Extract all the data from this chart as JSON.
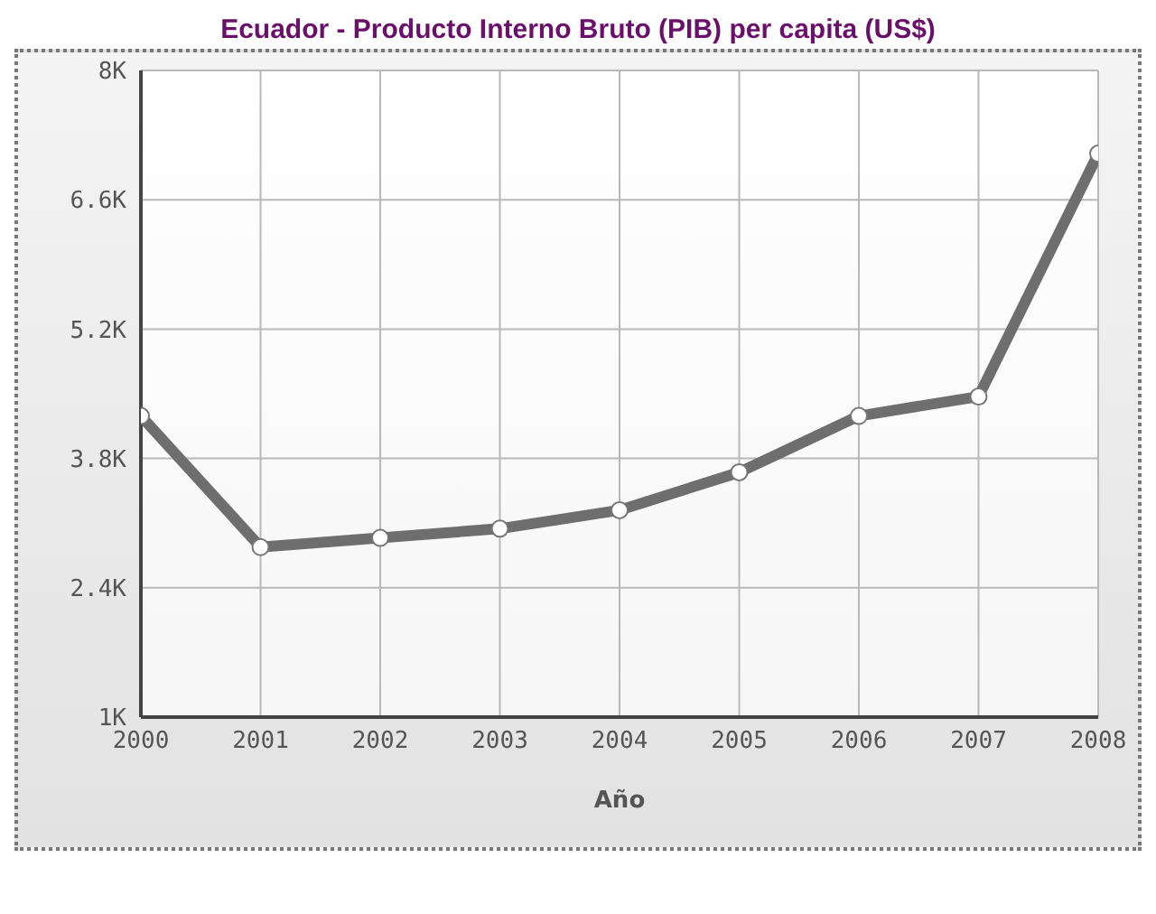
{
  "chart_data": {
    "type": "line",
    "title": "Ecuador - Producto Interno Bruto (PIB) per capita (US$)",
    "xlabel": "Año",
    "x": [
      2000,
      2001,
      2002,
      2003,
      2004,
      2005,
      2006,
      2007,
      2008
    ],
    "series": [
      {
        "color": "#6e6e6e",
        "values": [
          4260,
          2840,
          2940,
          3040,
          3240,
          3650,
          4260,
          4470,
          7100
        ]
      }
    ],
    "xlim": [
      2000,
      2008
    ],
    "xticks": [
      2000,
      2001,
      2002,
      2003,
      2004,
      2005,
      2006,
      2007,
      2008
    ],
    "ylim": [
      1000,
      8000
    ],
    "yticks": [
      {
        "value": 1000,
        "label": "1K"
      },
      {
        "value": 2400,
        "label": "2.4K"
      },
      {
        "value": 3800,
        "label": "3.8K"
      },
      {
        "value": 5200,
        "label": "5.2K"
      },
      {
        "value": 6600,
        "label": "6.6K"
      },
      {
        "value": 8000,
        "label": "8K"
      }
    ],
    "grid": true,
    "marker": "circle",
    "line_style": "solid",
    "legend": false
  }
}
